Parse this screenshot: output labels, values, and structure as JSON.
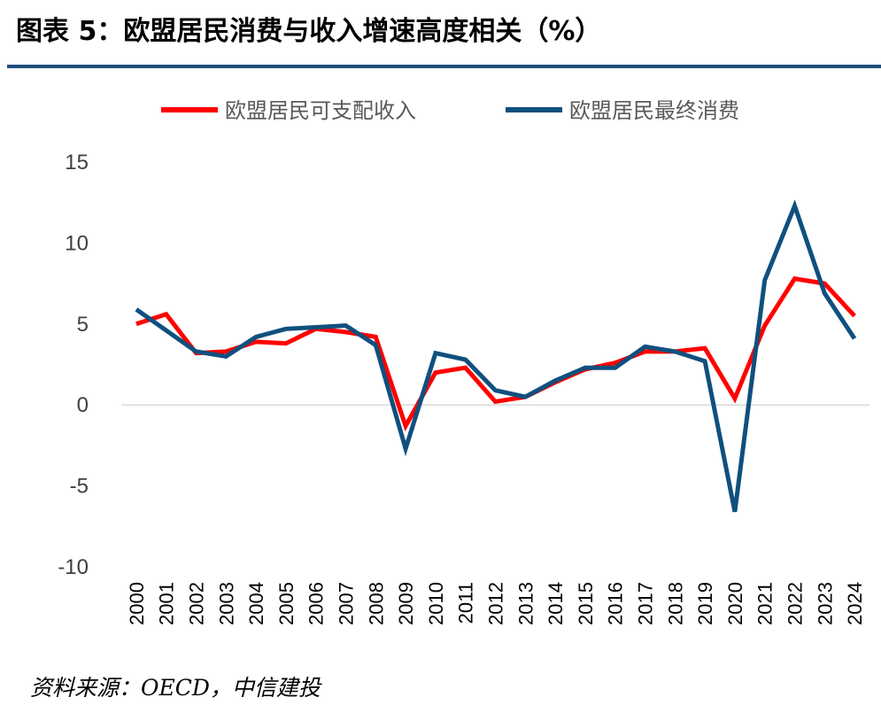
{
  "figure": {
    "title": "图表 5：欧盟居民消费与收入增速高度相关（%）",
    "source_note": "资料来源：OECD，中信建投"
  },
  "chart_data": {
    "type": "line",
    "title": "",
    "xlabel": "",
    "ylabel": "",
    "categories": [
      "2000",
      "2001",
      "2002",
      "2003",
      "2004",
      "2005",
      "2006",
      "2007",
      "2008",
      "2009",
      "2010",
      "2011",
      "2012",
      "2013",
      "2014",
      "2015",
      "2016",
      "2017",
      "2018",
      "2019",
      "2020",
      "2021",
      "2022",
      "2023",
      "2024"
    ],
    "ylim": [
      -10,
      15
    ],
    "yticks": [
      15,
      10,
      5,
      0,
      -5,
      -10
    ],
    "grid": false,
    "legend_position": "top",
    "series": [
      {
        "name": "欧盟居民可支配收入",
        "color": "#ff0000",
        "values": [
          5.0,
          5.6,
          3.2,
          3.3,
          3.9,
          3.8,
          4.7,
          4.5,
          4.2,
          -1.3,
          2.0,
          2.3,
          0.2,
          0.5,
          1.4,
          2.2,
          2.6,
          3.3,
          3.3,
          3.5,
          0.4,
          4.9,
          7.8,
          7.5,
          5.5
        ]
      },
      {
        "name": "欧盟居民最终消费",
        "color": "#10507e",
        "values": [
          5.9,
          4.6,
          3.3,
          3.0,
          4.2,
          4.7,
          4.8,
          4.9,
          3.7,
          -2.7,
          3.2,
          2.8,
          0.9,
          0.5,
          1.5,
          2.3,
          2.3,
          3.6,
          3.3,
          2.7,
          -6.6,
          7.7,
          12.3,
          6.9,
          4.1
        ]
      }
    ]
  }
}
